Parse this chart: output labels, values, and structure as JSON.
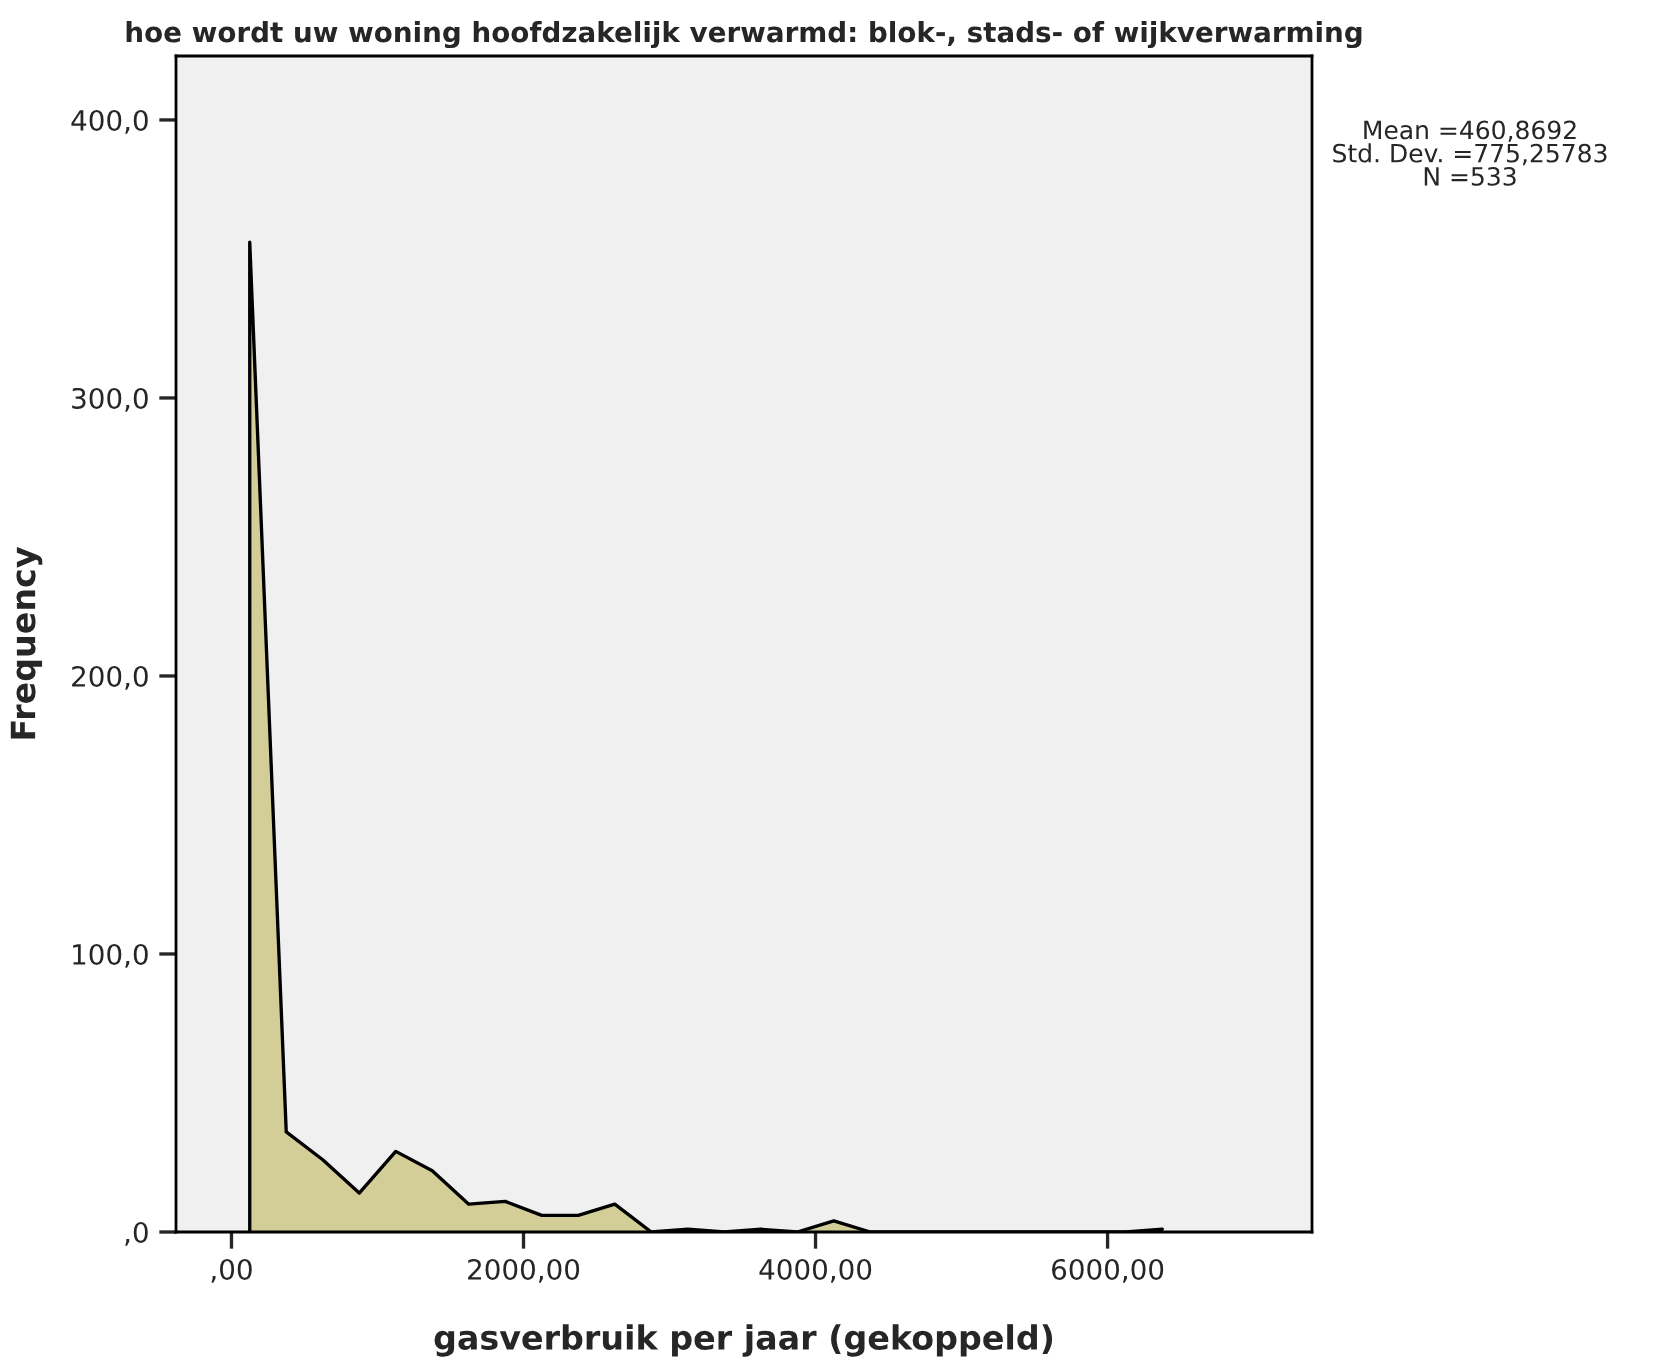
{
  "chart_data": {
    "type": "area",
    "title": "hoe wordt uw woning hoofdzakelijk verwarmd: blok-, stads- of wijkverwarming",
    "xlabel": "gasverbruik per jaar (gekoppeld)",
    "ylabel": "Frequency",
    "annotations": [
      "Mean =460,8692\nStd. Dev. =775,25783\nN =533"
    ],
    "x": [
      125,
      375,
      625,
      875,
      1125,
      1375,
      1625,
      1875,
      2125,
      2375,
      2625,
      2875,
      3125,
      3375,
      3625,
      3875,
      4125,
      4375,
      4625,
      4875,
      5125,
      5375,
      5625,
      5875,
      6125,
      6375
    ],
    "series": [
      {
        "color": "#d3ce97",
        "values": [
          356,
          36,
          26,
          14,
          29,
          22,
          10,
          11,
          6,
          6,
          10,
          0,
          1,
          0,
          1,
          0,
          4,
          0,
          0,
          0,
          0,
          0,
          0,
          0,
          0,
          1
        ]
      }
    ],
    "xlim": [
      -380,
      7400
    ],
    "xticks": [
      {
        "value": 0,
        "label": ",00"
      },
      {
        "value": 2000,
        "label": "2000,00"
      },
      {
        "value": 4000,
        "label": "4000,00"
      },
      {
        "value": 6000,
        "label": "6000,00"
      }
    ],
    "ylim": [
      0,
      423
    ],
    "yticks": [
      {
        "value": 0,
        "label": ",0"
      },
      {
        "value": 100,
        "label": "100,0"
      },
      {
        "value": 200,
        "label": "200,0"
      },
      {
        "value": 300,
        "label": "300,0"
      },
      {
        "value": 400,
        "label": "400,0"
      }
    ],
    "grid": false,
    "legend": false
  }
}
